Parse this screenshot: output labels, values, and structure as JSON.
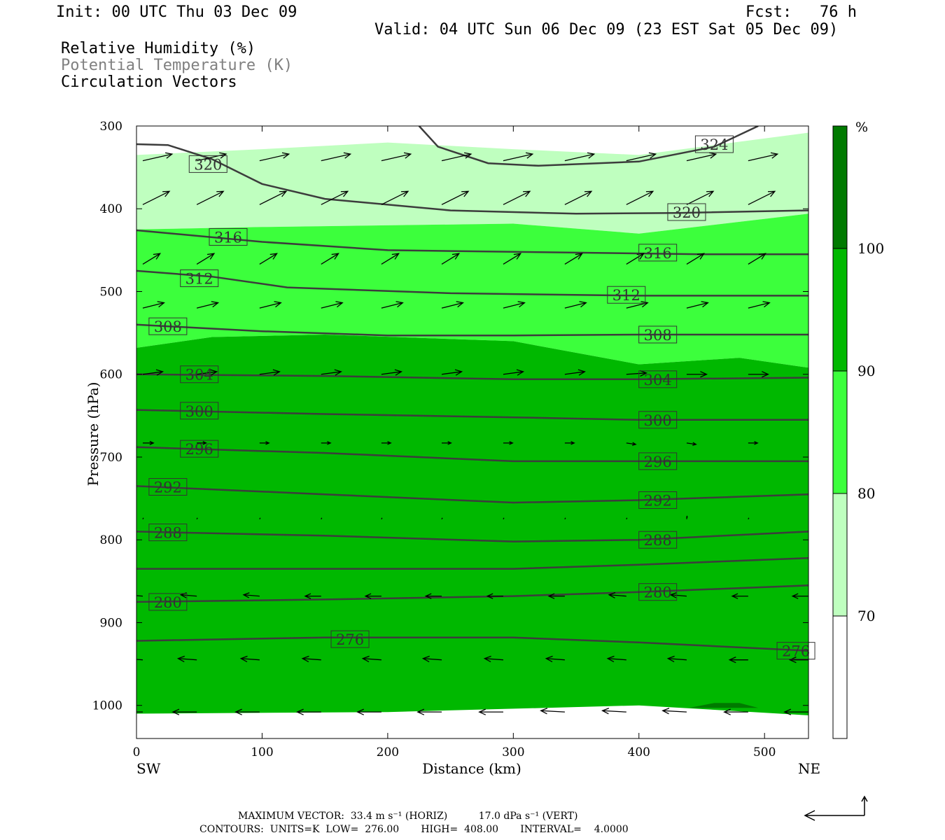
{
  "header": {
    "init": "Init: 00 UTC Thu 03 Dec 09",
    "fcst": "Fcst:   76 h",
    "valid": "Valid: 04 UTC Sun 06 Dec 09 (23 EST Sat 05 Dec 09)",
    "field1": "Relative Humidity (%)",
    "field2": "Potential Temperature (K)",
    "field3": "Circulation Vectors"
  },
  "footer": {
    "line1": "MAXIMUM VECTOR:  33.4 m s⁻¹ (HORIZ)          17.0 dPa s⁻¹ (VERT)",
    "line2": "CONTOURS:  UNITS=K  LOW=  276.00       HIGH=  408.00       INTERVAL=    4.0000"
  },
  "colors": {
    "rh_70_80": "#bfffbf",
    "rh_80_90": "#3cff3c",
    "rh_90_100": "#00b800",
    "rh_100_plus": "#007a00",
    "contour": "#3c3c3c",
    "vector": "#000000"
  },
  "chart_data": {
    "type": "cross-section",
    "xlabel": "Distance (km)",
    "ylabel": "Pressure (hPa)",
    "xlim": [
      0,
      535
    ],
    "ylim": [
      1040,
      300
    ],
    "x_ticks": [
      "0",
      "100",
      "200",
      "300",
      "400",
      "500"
    ],
    "y_ticks": [
      "300",
      "400",
      "500",
      "600",
      "700",
      "800",
      "900",
      "1000"
    ],
    "left_end_label": "SW",
    "right_end_label": "NE",
    "colorbar": {
      "unit": "%",
      "levels": [
        "70",
        "80",
        "90",
        "100"
      ]
    },
    "rh_regions": [
      {
        "level": "70-80",
        "top": [
          [
            0,
            335
          ],
          [
            100,
            328
          ],
          [
            200,
            320
          ],
          [
            300,
            328
          ],
          [
            400,
            335
          ],
          [
            535,
            308
          ]
        ],
        "bottom": [
          [
            0,
            425
          ],
          [
            100,
            422
          ],
          [
            200,
            420
          ],
          [
            300,
            418
          ],
          [
            400,
            430
          ],
          [
            535,
            406
          ]
        ]
      },
      {
        "level": "80-90",
        "top": [
          [
            0,
            425
          ],
          [
            100,
            422
          ],
          [
            200,
            420
          ],
          [
            300,
            418
          ],
          [
            400,
            430
          ],
          [
            535,
            406
          ]
        ],
        "bottom": [
          [
            0,
            568
          ],
          [
            60,
            555
          ],
          [
            150,
            552
          ],
          [
            300,
            560
          ],
          [
            400,
            588
          ],
          [
            480,
            580
          ],
          [
            535,
            592
          ]
        ]
      },
      {
        "level": "90-100",
        "top": [
          [
            0,
            568
          ],
          [
            60,
            555
          ],
          [
            150,
            552
          ],
          [
            300,
            560
          ],
          [
            400,
            588
          ],
          [
            480,
            580
          ],
          [
            535,
            592
          ]
        ],
        "bottom": [
          [
            0,
            1010
          ],
          [
            200,
            1008
          ],
          [
            400,
            1000
          ],
          [
            535,
            1012
          ]
        ]
      }
    ],
    "theta_contours": [
      {
        "value": 276,
        "label": "276",
        "points": [
          [
            0,
            922
          ],
          [
            150,
            918
          ],
          [
            300,
            918
          ],
          [
            400,
            924
          ],
          [
            535,
            934
          ]
        ],
        "label_at": [
          [
            170,
            920
          ],
          [
            525,
            934
          ]
        ]
      },
      {
        "value": 280,
        "label": "280",
        "points": [
          [
            0,
            875
          ],
          [
            150,
            872
          ],
          [
            300,
            868
          ],
          [
            400,
            863
          ],
          [
            535,
            855
          ]
        ],
        "label_at": [
          [
            25,
            875
          ],
          [
            415,
            863
          ]
        ]
      },
      {
        "value": 284,
        "label": "",
        "points": [
          [
            0,
            835
          ],
          [
            150,
            835
          ],
          [
            300,
            835
          ],
          [
            400,
            830
          ],
          [
            535,
            822
          ]
        ],
        "label_at": []
      },
      {
        "value": 288,
        "label": "288",
        "points": [
          [
            0,
            790
          ],
          [
            150,
            795
          ],
          [
            300,
            802
          ],
          [
            400,
            800
          ],
          [
            535,
            790
          ]
        ],
        "label_at": [
          [
            25,
            791
          ],
          [
            415,
            800
          ]
        ]
      },
      {
        "value": 292,
        "label": "292",
        "points": [
          [
            0,
            735
          ],
          [
            150,
            745
          ],
          [
            300,
            755
          ],
          [
            400,
            752
          ],
          [
            535,
            745
          ]
        ],
        "label_at": [
          [
            25,
            736
          ],
          [
            415,
            752
          ]
        ]
      },
      {
        "value": 296,
        "label": "296",
        "points": [
          [
            0,
            688
          ],
          [
            150,
            695
          ],
          [
            300,
            705
          ],
          [
            400,
            705
          ],
          [
            535,
            705
          ]
        ],
        "label_at": [
          [
            50,
            690
          ],
          [
            415,
            705
          ]
        ]
      },
      {
        "value": 300,
        "label": "300",
        "points": [
          [
            0,
            643
          ],
          [
            150,
            648
          ],
          [
            300,
            652
          ],
          [
            400,
            655
          ],
          [
            535,
            655
          ]
        ],
        "label_at": [
          [
            50,
            644
          ],
          [
            415,
            655
          ]
        ]
      },
      {
        "value": 304,
        "label": "304",
        "points": [
          [
            0,
            600
          ],
          [
            150,
            602
          ],
          [
            300,
            606
          ],
          [
            400,
            606
          ],
          [
            535,
            604
          ]
        ],
        "label_at": [
          [
            50,
            600
          ],
          [
            415,
            606
          ]
        ]
      },
      {
        "value": 308,
        "label": "308",
        "points": [
          [
            0,
            540
          ],
          [
            100,
            548
          ],
          [
            200,
            553
          ],
          [
            300,
            553
          ],
          [
            400,
            552
          ],
          [
            535,
            552
          ]
        ],
        "label_at": [
          [
            25,
            542
          ],
          [
            415,
            552
          ]
        ]
      },
      {
        "value": 312,
        "label": "312",
        "points": [
          [
            0,
            475
          ],
          [
            60,
            482
          ],
          [
            120,
            495
          ],
          [
            250,
            502
          ],
          [
            400,
            505
          ],
          [
            535,
            505
          ]
        ],
        "label_at": [
          [
            50,
            484
          ],
          [
            390,
            504
          ]
        ]
      },
      {
        "value": 316,
        "label": "316",
        "points": [
          [
            0,
            426
          ],
          [
            100,
            440
          ],
          [
            200,
            450
          ],
          [
            350,
            453
          ],
          [
            450,
            455
          ],
          [
            535,
            455
          ]
        ],
        "label_at": [
          [
            73,
            434
          ],
          [
            415,
            453
          ]
        ]
      },
      {
        "value": 320,
        "label": "320",
        "points": [
          [
            0,
            322
          ],
          [
            25,
            323
          ],
          [
            60,
            340
          ],
          [
            100,
            370
          ],
          [
            150,
            388
          ],
          [
            250,
            402
          ],
          [
            350,
            406
          ],
          [
            430,
            405
          ],
          [
            535,
            402
          ]
        ],
        "label_at": [
          [
            57,
            346
          ],
          [
            438,
            404
          ]
        ]
      },
      {
        "value": 324,
        "label": "324",
        "points": [
          [
            225,
            300
          ],
          [
            240,
            325
          ],
          [
            280,
            345
          ],
          [
            320,
            348
          ],
          [
            400,
            343
          ],
          [
            460,
            325
          ],
          [
            495,
            300
          ]
        ],
        "label_at": [
          [
            460,
            322
          ]
        ]
      }
    ],
    "vectors": {
      "x": [
        5,
        48,
        98,
        147,
        195,
        243,
        292,
        341,
        390,
        438,
        487,
        535
      ],
      "rows": [
        {
          "p": 342,
          "u": [
            22,
            22,
            22,
            22,
            22,
            22,
            22,
            22,
            22,
            22,
            22,
            22
          ],
          "w": [
            5,
            5,
            5,
            5,
            5,
            5,
            5,
            5,
            5,
            5,
            5,
            5
          ]
        },
        {
          "p": 395,
          "u": [
            20,
            20,
            20,
            20,
            20,
            20,
            20,
            20,
            20,
            20,
            20,
            20
          ],
          "w": [
            10,
            10,
            10,
            10,
            10,
            10,
            10,
            10,
            10,
            10,
            10,
            10
          ]
        },
        {
          "p": 467,
          "u": [
            13,
            13,
            13,
            13,
            13,
            13,
            13,
            13,
            13,
            13,
            13,
            13
          ],
          "w": [
            8,
            8,
            8,
            8,
            8,
            8,
            8,
            8,
            8,
            8,
            8,
            8
          ]
        },
        {
          "p": 520,
          "u": [
            16,
            16,
            16,
            16,
            16,
            16,
            16,
            16,
            16,
            16,
            16,
            16
          ],
          "w": [
            4,
            4,
            4,
            4,
            4,
            4,
            4,
            4,
            4,
            4,
            4,
            4
          ]
        },
        {
          "p": 600,
          "u": [
            15,
            15,
            15,
            15,
            15,
            15,
            15,
            15,
            15,
            15,
            15,
            15
          ],
          "w": [
            2,
            2,
            2,
            2,
            2,
            2,
            2,
            2,
            1,
            0,
            0,
            0
          ]
        },
        {
          "p": 683,
          "u": [
            8,
            7,
            7,
            7,
            7,
            7,
            7,
            7,
            7,
            7,
            7,
            7
          ],
          "w": [
            0,
            0,
            0,
            0,
            0,
            0,
            0,
            0,
            -1,
            -1,
            0,
            0
          ]
        },
        {
          "p": 775,
          "u": [
            0.5,
            0.5,
            0.5,
            0.5,
            0.5,
            0.5,
            0.5,
            0.5,
            0.5,
            0.3,
            0.5,
            0.5
          ],
          "w": [
            1,
            1,
            1,
            1,
            1,
            1,
            1,
            1,
            1,
            2,
            1,
            1
          ]
        },
        {
          "p": 868,
          "u": [
            -12,
            -12,
            -12,
            -12,
            -12,
            -12,
            -12,
            -12,
            -13,
            -12,
            -12,
            -12
          ],
          "w": [
            1,
            1,
            1,
            0,
            0,
            0,
            0,
            0,
            1,
            1,
            0,
            0
          ]
        },
        {
          "p": 945,
          "u": [
            -14,
            -14,
            -14,
            -14,
            -14,
            -14,
            -14,
            -14,
            -14,
            -14,
            -14,
            -14
          ],
          "w": [
            1,
            1,
            1,
            1,
            1,
            1,
            1,
            1,
            1,
            1,
            0,
            0
          ]
        },
        {
          "p": 1008,
          "u": [
            -18,
            -18,
            -18,
            -18,
            -18,
            -18,
            -18,
            -18,
            -18,
            -18,
            -18,
            -18
          ],
          "w": [
            0,
            0,
            0,
            0,
            0,
            0,
            0,
            1,
            1,
            1,
            0,
            0
          ]
        }
      ]
    }
  }
}
